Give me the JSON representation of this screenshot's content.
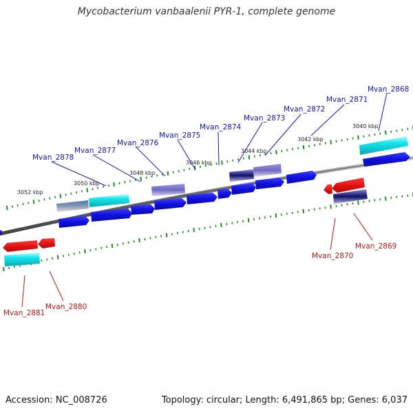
{
  "title": "Mycobacterium vanbaalenii PYR-1, complete genome",
  "footer": {
    "accession": "Accession: NC_008726",
    "summary": "Topology: circular; Length: 6,491,865 bp; Genes: 6,037"
  },
  "colors": {
    "backbone": "#777777",
    "cds_forward": "#1010e6",
    "cds_reverse": "#e61414",
    "feature_cyan": "#10e4ea",
    "feature_purple": "#7b72c8",
    "tick": "#1c8a1c",
    "label_forward": "#1212c8",
    "label_reverse": "#cc1010",
    "scale_text": "#222222"
  },
  "scale_labels": [
    "3040 kbp",
    "3042 kbp",
    "3044 kbp",
    "3046 kbp",
    "3048 kbp",
    "3050 kbp",
    "3052 kbp"
  ],
  "forward_gene_labels": [
    "Mvan_2868",
    "Mvan_2871",
    "Mvan_2872",
    "Mvan_2873",
    "Mvan_2874",
    "Mvan_2875",
    "Mvan_2876",
    "Mvan_2877",
    "Mvan_2878"
  ],
  "reverse_gene_labels": [
    "Mvan_2869",
    "Mvan_2870",
    "Mvan_2880",
    "Mvan_2881"
  ]
}
